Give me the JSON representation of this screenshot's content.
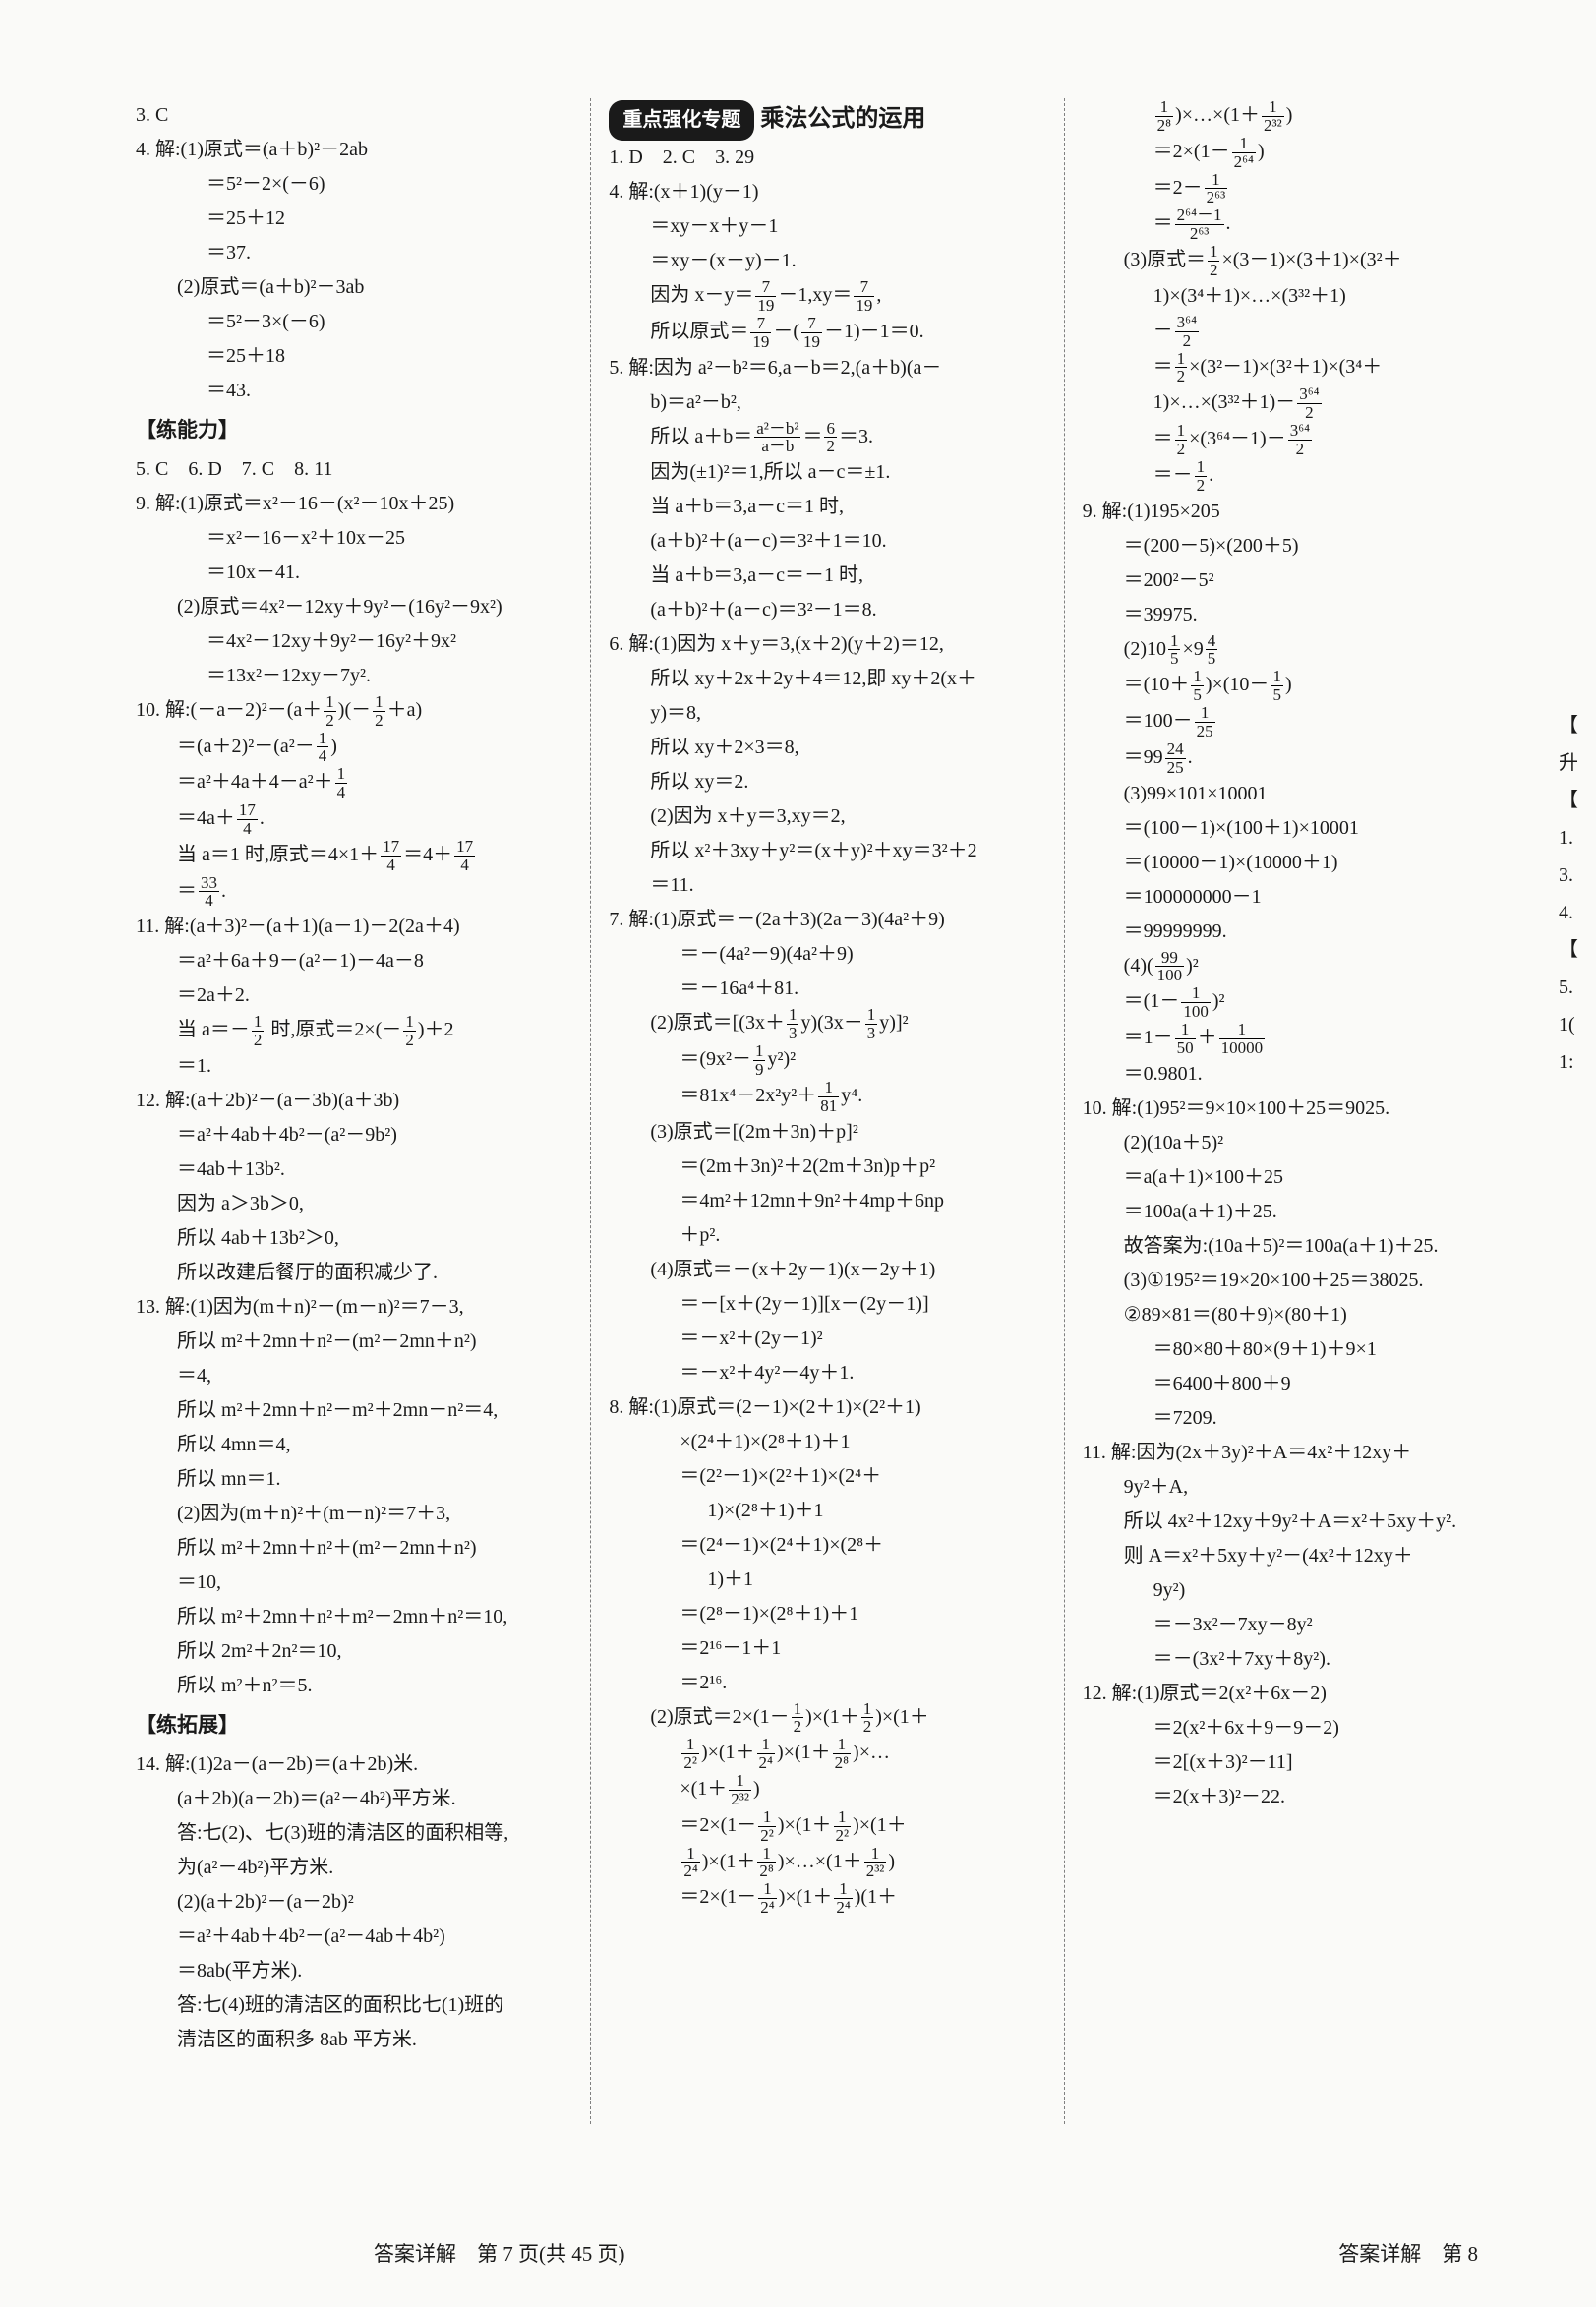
{
  "meta": {
    "font_size": 20,
    "line_height": 1.75,
    "text_color": "#1a1a1a",
    "background_color": "#fafaf8",
    "badge_bg": "#1a1a1a",
    "badge_fg": "#ffffff",
    "divider_color": "#808080"
  },
  "topic": {
    "badge": "重点强化专题",
    "title": "乘法公式的运用"
  },
  "sections": {
    "skill": "【练能力】",
    "extend": "【练拓展】"
  },
  "footer": {
    "left": "答案详解　第 7 页(共 45 页)",
    "right": "答案详解　第 8 "
  },
  "edge_marks": [
    "【",
    "升",
    "【",
    "1.",
    "3.",
    "4.",
    "",
    "",
    "",
    "",
    "【",
    "5.",
    "1(",
    "1:"
  ],
  "col1": [
    {
      "t": "3. C",
      "c": ""
    },
    {
      "t": "4. 解:(1)原式＝(a＋b)²－2ab",
      "c": ""
    },
    {
      "t": "＝5²－2×(－6)",
      "c": "indent2"
    },
    {
      "t": "＝25＋12",
      "c": "indent2"
    },
    {
      "t": "＝37.",
      "c": "indent2"
    },
    {
      "t": "(2)原式＝(a＋b)²－3ab",
      "c": "indent1"
    },
    {
      "t": "＝5²－3×(－6)",
      "c": "indent2"
    },
    {
      "t": "＝25＋18",
      "c": "indent2"
    },
    {
      "t": "＝43.",
      "c": "indent2"
    },
    {
      "t": "section:skill",
      "c": ""
    },
    {
      "t": "5. C　6. D　7. C　8. 11",
      "c": ""
    },
    {
      "t": "9. 解:(1)原式＝x²－16－(x²－10x＋25)",
      "c": ""
    },
    {
      "t": "＝x²－16－x²＋10x－25",
      "c": "indent2"
    },
    {
      "t": "＝10x－41.",
      "c": "indent2"
    },
    {
      "t": "(2)原式＝4x²－12xy＋9y²－(16y²－9x²)",
      "c": "indent1"
    },
    {
      "t": "＝4x²－12xy＋9y²－16y²＋9x²",
      "c": "indent2"
    },
    {
      "t": "＝13x²－12xy－7y².",
      "c": "indent2"
    },
    {
      "t": "10. 解:(－a－2)²－(a＋<f>1|2</f>)(－<f>1|2</f>＋a)",
      "c": ""
    },
    {
      "t": "＝(a＋2)²－(a²－<f>1|4</f>)",
      "c": "indent1"
    },
    {
      "t": "＝a²＋4a＋4－a²＋<f>1|4</f>",
      "c": "indent1"
    },
    {
      "t": "＝4a＋<f>17|4</f>.",
      "c": "indent1"
    },
    {
      "t": "当 a＝1 时,原式＝4×1＋<f>17|4</f>＝4＋<f>17|4</f>",
      "c": "indent1"
    },
    {
      "t": "＝<f>33|4</f>.",
      "c": "indent1"
    },
    {
      "t": "11. 解:(a＋3)²－(a＋1)(a－1)－2(2a＋4)",
      "c": ""
    },
    {
      "t": "＝a²＋6a＋9－(a²－1)－4a－8",
      "c": "indent1"
    },
    {
      "t": "＝2a＋2.",
      "c": "indent1"
    },
    {
      "t": "当 a＝－<f>1|2</f> 时,原式＝2×(－<f>1|2</f>)＋2",
      "c": "indent1"
    },
    {
      "t": "＝1.",
      "c": "indent1"
    },
    {
      "t": "12. 解:(a＋2b)²－(a－3b)(a＋3b)",
      "c": ""
    },
    {
      "t": "＝a²＋4ab＋4b²－(a²－9b²)",
      "c": "indent1"
    },
    {
      "t": "＝4ab＋13b².",
      "c": "indent1"
    },
    {
      "t": "因为 a＞3b＞0,",
      "c": "indent1"
    },
    {
      "t": "所以 4ab＋13b²＞0,",
      "c": "indent1"
    },
    {
      "t": "所以改建后餐厅的面积减少了.",
      "c": "indent1"
    },
    {
      "t": "13. 解:(1)因为(m＋n)²－(m－n)²＝7－3,",
      "c": ""
    },
    {
      "t": "所以 m²＋2mn＋n²－(m²－2mn＋n²)",
      "c": "indent1"
    },
    {
      "t": "＝4,",
      "c": "indent1"
    },
    {
      "t": "所以 m²＋2mn＋n²－m²＋2mn－n²＝4,",
      "c": "indent1"
    },
    {
      "t": "所以 4mn＝4,",
      "c": "indent1"
    },
    {
      "t": "所以 mn＝1.",
      "c": "indent1"
    },
    {
      "t": "(2)因为(m＋n)²＋(m－n)²＝7＋3,",
      "c": "indent1"
    },
    {
      "t": "所以 m²＋2mn＋n²＋(m²－2mn＋n²)",
      "c": "indent1"
    },
    {
      "t": "＝10,",
      "c": "indent1"
    },
    {
      "t": "所以 m²＋2mn＋n²＋m²－2mn＋n²＝10,",
      "c": "indent1"
    },
    {
      "t": "所以 2m²＋2n²＝10,",
      "c": "indent1"
    },
    {
      "t": "所以 m²＋n²＝5.",
      "c": "indent1"
    },
    {
      "t": "section:extend",
      "c": ""
    },
    {
      "t": "14. 解:(1)2a－(a－2b)＝(a＋2b)米.",
      "c": ""
    },
    {
      "t": "(a＋2b)(a－2b)＝(a²－4b²)平方米.",
      "c": "indent1"
    },
    {
      "t": "答:七(2)、七(3)班的清洁区的面积相等,",
      "c": "indent1"
    },
    {
      "t": "为(a²－4b²)平方米.",
      "c": "indent1"
    },
    {
      "t": "(2)(a＋2b)²－(a－2b)²",
      "c": "indent1"
    },
    {
      "t": "＝a²＋4ab＋4b²－(a²－4ab＋4b²)",
      "c": "indent1"
    },
    {
      "t": "＝8ab(平方米).",
      "c": "indent1"
    },
    {
      "t": "答:七(4)班的清洁区的面积比七(1)班的",
      "c": "indent1"
    },
    {
      "t": "清洁区的面积多 8ab 平方米.",
      "c": "indent1"
    }
  ],
  "col2": [
    {
      "t": "topic",
      "c": ""
    },
    {
      "t": "1. D　2. C　3. 29",
      "c": ""
    },
    {
      "t": "4. 解:(x＋1)(y－1)",
      "c": ""
    },
    {
      "t": "＝xy－x＋y－1",
      "c": "indent1"
    },
    {
      "t": "＝xy－(x－y)－1.",
      "c": "indent1"
    },
    {
      "t": "因为 x－y＝<f>7|19</f>－1,xy＝<f>7|19</f>,",
      "c": "indent1"
    },
    {
      "t": "所以原式＝<f>7|19</f>－(<f>7|19</f>－1)－1＝0.",
      "c": "indent1"
    },
    {
      "t": "5. 解:因为 a²－b²＝6,a－b＝2,(a＋b)(a－",
      "c": ""
    },
    {
      "t": "b)＝a²－b²,",
      "c": "indent1"
    },
    {
      "t": "所以 a＋b＝<f>a²－b²|a－b</f>＝<f>6|2</f>＝3.",
      "c": "indent1"
    },
    {
      "t": "因为(±1)²＝1,所以 a－c＝±1.",
      "c": "indent1"
    },
    {
      "t": "当 a＋b＝3,a－c＝1 时,",
      "c": "indent1"
    },
    {
      "t": "(a＋b)²＋(a－c)＝3²＋1＝10.",
      "c": "indent1"
    },
    {
      "t": "当 a＋b＝3,a－c＝－1 时,",
      "c": "indent1"
    },
    {
      "t": "(a＋b)²＋(a－c)＝3²－1＝8.",
      "c": "indent1"
    },
    {
      "t": "6. 解:(1)因为 x＋y＝3,(x＋2)(y＋2)＝12,",
      "c": ""
    },
    {
      "t": "所以 xy＋2x＋2y＋4＝12,即 xy＋2(x＋",
      "c": "indent1"
    },
    {
      "t": "y)＝8,",
      "c": "indent1"
    },
    {
      "t": "所以 xy＋2×3＝8,",
      "c": "indent1"
    },
    {
      "t": "所以 xy＝2.",
      "c": "indent1"
    },
    {
      "t": "(2)因为 x＋y＝3,xy＝2,",
      "c": "indent1"
    },
    {
      "t": "所以 x²＋3xy＋y²＝(x＋y)²＋xy＝3²＋2",
      "c": "indent1"
    },
    {
      "t": "＝11.",
      "c": "indent1"
    },
    {
      "t": "7. 解:(1)原式＝－(2a＋3)(2a－3)(4a²＋9)",
      "c": ""
    },
    {
      "t": "＝－(4a²－9)(4a²＋9)",
      "c": "indent2"
    },
    {
      "t": "＝－16a⁴＋81.",
      "c": "indent2"
    },
    {
      "t": "(2)原式＝[(3x＋<f>1|3</f>y)(3x－<f>1|3</f>y)]²",
      "c": "indent1"
    },
    {
      "t": "＝(9x²－<f>1|9</f>y²)²",
      "c": "indent2"
    },
    {
      "t": "＝81x⁴－2x²y²＋<f>1|81</f>y⁴.",
      "c": "indent2"
    },
    {
      "t": "(3)原式＝[(2m＋3n)＋p]²",
      "c": "indent1"
    },
    {
      "t": "＝(2m＋3n)²＋2(2m＋3n)p＋p²",
      "c": "indent2"
    },
    {
      "t": "＝4m²＋12mn＋9n²＋4mp＋6np",
      "c": "indent2"
    },
    {
      "t": "＋p².",
      "c": "indent2"
    },
    {
      "t": "(4)原式＝－(x＋2y－1)(x－2y＋1)",
      "c": "indent1"
    },
    {
      "t": "＝－[x＋(2y－1)][x－(2y－1)]",
      "c": "indent2"
    },
    {
      "t": "＝－x²＋(2y－1)²",
      "c": "indent2"
    },
    {
      "t": "＝－x²＋4y²－4y＋1.",
      "c": "indent2"
    },
    {
      "t": "8. 解:(1)原式＝(2－1)×(2＋1)×(2²＋1)",
      "c": ""
    },
    {
      "t": "×(2⁴＋1)×(2⁸＋1)＋1",
      "c": "indent2"
    },
    {
      "t": "＝(2²－1)×(2²＋1)×(2⁴＋",
      "c": "indent2"
    },
    {
      "t": "1)×(2⁸＋1)＋1",
      "c": "indent3"
    },
    {
      "t": "＝(2⁴－1)×(2⁴＋1)×(2⁸＋",
      "c": "indent2"
    },
    {
      "t": "1)＋1",
      "c": "indent3"
    },
    {
      "t": "＝(2⁸－1)×(2⁸＋1)＋1",
      "c": "indent2"
    },
    {
      "t": "＝2¹⁶－1＋1",
      "c": "indent2"
    },
    {
      "t": "＝2¹⁶.",
      "c": "indent2"
    },
    {
      "t": "(2)原式＝2×(1－<f>1|2</f>)×(1＋<f>1|2</f>)×(1＋",
      "c": "indent1"
    },
    {
      "t": "<f>1|2²</f>)×(1＋<f>1|2⁴</f>)×(1＋<f>1|2⁸</f>)×…",
      "c": "indent2"
    },
    {
      "t": "×(1＋<f>1|2³²</f>)",
      "c": "indent2"
    },
    {
      "t": "＝2×(1－<f>1|2²</f>)×(1＋<f>1|2²</f>)×(1＋",
      "c": "indent2"
    },
    {
      "t": "<f>1|2⁴</f>)×(1＋<f>1|2⁸</f>)×…×(1＋<f>1|2³²</f>)",
      "c": "indent2"
    },
    {
      "t": "＝2×(1－<f>1|2⁴</f>)×(1＋<f>1|2⁴</f>)(1＋",
      "c": "indent2"
    }
  ],
  "col3": [
    {
      "t": "<f>1|2⁸</f>)×…×(1＋<f>1|2³²</f>)",
      "c": "indent2"
    },
    {
      "t": "＝2×(1－<f>1|2⁶⁴</f>)",
      "c": "indent2"
    },
    {
      "t": "＝2－<f>1|2⁶³</f>",
      "c": "indent2"
    },
    {
      "t": "＝<f>2⁶⁴－1|2⁶³</f>.",
      "c": "indent2"
    },
    {
      "t": "(3)原式＝<f>1|2</f>×(3－1)×(3＋1)×(3²＋",
      "c": "indent1"
    },
    {
      "t": "1)×(3⁴＋1)×…×(3³²＋1)",
      "c": "indent2"
    },
    {
      "t": "－<f>3⁶⁴|2</f>",
      "c": "indent2"
    },
    {
      "t": "＝<f>1|2</f>×(3²－1)×(3²＋1)×(3⁴＋",
      "c": "indent2"
    },
    {
      "t": "1)×…×(3³²＋1)－<f>3⁶⁴|2</f>",
      "c": "indent2"
    },
    {
      "t": "＝<f>1|2</f>×(3⁶⁴－1)－<f>3⁶⁴|2</f>",
      "c": "indent2"
    },
    {
      "t": "＝－<f>1|2</f>.",
      "c": "indent2"
    },
    {
      "t": "9. 解:(1)195×205",
      "c": ""
    },
    {
      "t": "＝(200－5)×(200＋5)",
      "c": "indent1"
    },
    {
      "t": "＝200²－5²",
      "c": "indent1"
    },
    {
      "t": "＝39975.",
      "c": "indent1"
    },
    {
      "t": "(2)10<f>1|5</f>×9<f>4|5</f>",
      "c": "indent1"
    },
    {
      "t": "＝(10＋<f>1|5</f>)×(10－<f>1|5</f>)",
      "c": "indent1"
    },
    {
      "t": "＝100－<f>1|25</f>",
      "c": "indent1"
    },
    {
      "t": "＝99<f>24|25</f>.",
      "c": "indent1"
    },
    {
      "t": "(3)99×101×10001",
      "c": "indent1"
    },
    {
      "t": "＝(100－1)×(100＋1)×10001",
      "c": "indent1"
    },
    {
      "t": "＝(10000－1)×(10000＋1)",
      "c": "indent1"
    },
    {
      "t": "＝100000000－1",
      "c": "indent1"
    },
    {
      "t": "＝99999999.",
      "c": "indent1"
    },
    {
      "t": "(4)(<f>99|100</f>)²",
      "c": "indent1"
    },
    {
      "t": "＝(1－<f>1|100</f>)²",
      "c": "indent1"
    },
    {
      "t": "＝1－<f>1|50</f>＋<f>1|10000</f>",
      "c": "indent1"
    },
    {
      "t": "＝0.9801.",
      "c": "indent1"
    },
    {
      "t": "10. 解:(1)95²＝9×10×100＋25＝9025.",
      "c": ""
    },
    {
      "t": "(2)(10a＋5)²",
      "c": "indent1"
    },
    {
      "t": "＝a(a＋1)×100＋25",
      "c": "indent1"
    },
    {
      "t": "＝100a(a＋1)＋25.",
      "c": "indent1"
    },
    {
      "t": "故答案为:(10a＋5)²＝100a(a＋1)＋25.",
      "c": "indent1"
    },
    {
      "t": "(3)①195²＝19×20×100＋25＝38025.",
      "c": "indent1"
    },
    {
      "t": "②89×81＝(80＋9)×(80＋1)",
      "c": "indent1"
    },
    {
      "t": "＝80×80＋80×(9＋1)＋9×1",
      "c": "indent2"
    },
    {
      "t": "＝6400＋800＋9",
      "c": "indent2"
    },
    {
      "t": "＝7209.",
      "c": "indent2"
    },
    {
      "t": "11. 解:因为(2x＋3y)²＋A＝4x²＋12xy＋",
      "c": ""
    },
    {
      "t": "9y²＋A,",
      "c": "indent1"
    },
    {
      "t": "所以 4x²＋12xy＋9y²＋A＝x²＋5xy＋y².",
      "c": "indent1"
    },
    {
      "t": "则 A＝x²＋5xy＋y²－(4x²＋12xy＋",
      "c": "indent1"
    },
    {
      "t": "9y²)",
      "c": "indent2"
    },
    {
      "t": "＝－3x²－7xy－8y²",
      "c": "indent2"
    },
    {
      "t": "＝－(3x²＋7xy＋8y²).",
      "c": "indent2"
    },
    {
      "t": "12. 解:(1)原式＝2(x²＋6x－2)",
      "c": ""
    },
    {
      "t": "＝2(x²＋6x＋9－9－2)",
      "c": "indent2"
    },
    {
      "t": "＝2[(x＋3)²－11]",
      "c": "indent2"
    },
    {
      "t": "＝2(x＋3)²－22.",
      "c": "indent2"
    }
  ]
}
